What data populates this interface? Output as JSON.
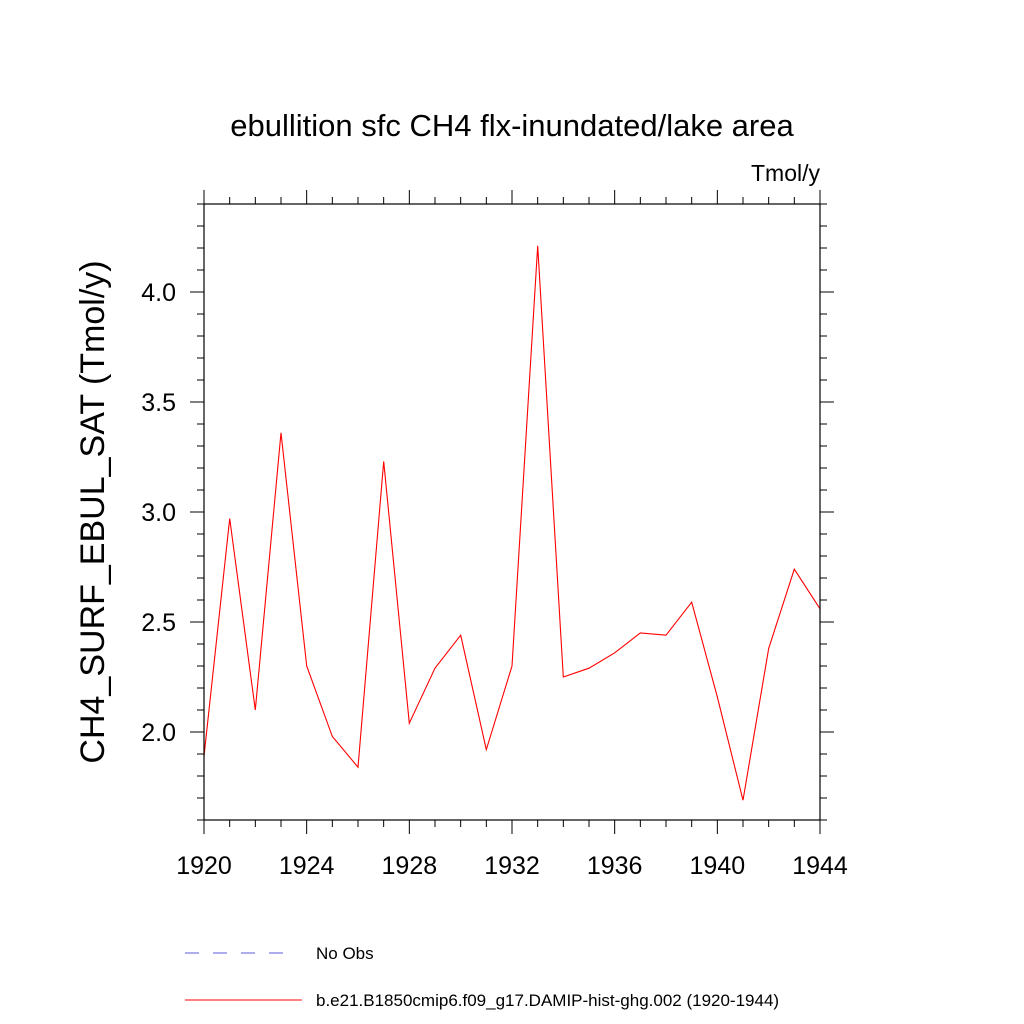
{
  "chart_data": {
    "type": "line",
    "title": "ebullition sfc CH4 flx-inundated/lake area",
    "units_label": "Tmol/y",
    "ylabel": "CH4_SURF_EBUL_SAT  (Tmol/y)",
    "xlabel": "",
    "xlim": [
      1920,
      1944
    ],
    "ylim": [
      1.6,
      4.4
    ],
    "xticks": [
      1920,
      1924,
      1928,
      1932,
      1936,
      1940,
      1944
    ],
    "xtick_labels": [
      "1920",
      "1924",
      "1928",
      "1932",
      "1936",
      "1940",
      "1944"
    ],
    "yticks": [
      2.0,
      2.5,
      3.0,
      3.5,
      4.0
    ],
    "ytick_labels": [
      "2.0",
      "2.5",
      "3.0",
      "3.5",
      "4.0"
    ],
    "grid": false,
    "legend_placement": "bottom",
    "series": [
      {
        "name": "b.e21.B1850cmip6.f09_g17.DAMIP-hist-ghg.002 (1920-1944)",
        "color": "#ff0000",
        "style": "solid",
        "x": [
          1920,
          1921,
          1922,
          1923,
          1924,
          1925,
          1926,
          1927,
          1928,
          1929,
          1930,
          1931,
          1932,
          1933,
          1934,
          1935,
          1936,
          1937,
          1938,
          1939,
          1940,
          1941,
          1942,
          1943,
          1944
        ],
        "values": [
          1.89,
          2.97,
          2.1,
          3.36,
          2.3,
          1.98,
          1.84,
          3.23,
          2.04,
          2.29,
          2.44,
          1.92,
          2.3,
          4.21,
          2.25,
          2.29,
          2.36,
          2.45,
          2.44,
          2.59,
          2.16,
          1.69,
          2.38,
          2.74,
          2.56
        ]
      }
    ],
    "legend": [
      {
        "label": "No Obs",
        "color": "#5a5adc",
        "style": "dashed"
      },
      {
        "label": "b.e21.B1850cmip6.f09_g17.DAMIP-hist-ghg.002 (1920-1944)",
        "color": "#ff0000",
        "style": "solid"
      }
    ]
  }
}
